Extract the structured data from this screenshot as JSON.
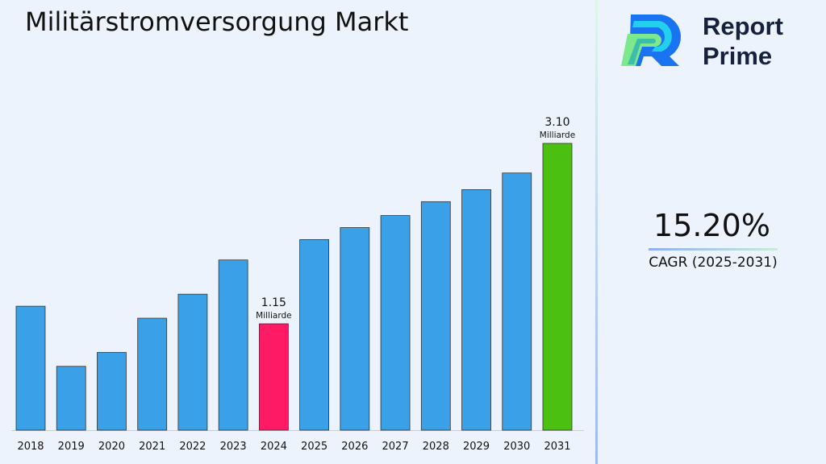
{
  "title": "Militärstromversorgung Markt",
  "brand": {
    "line1": "Report",
    "line2": "Prime"
  },
  "cagr": {
    "value": "15.20%",
    "label": "CAGR (2025-2031)"
  },
  "colors": {
    "default": "#3aa0e8",
    "highlight_2024": "#ff1a66",
    "highlight_2031": "#4cc010"
  },
  "chart_data": {
    "type": "bar",
    "title": "Militärstromversorgung Markt",
    "categories": [
      "2018",
      "2019",
      "2020",
      "2021",
      "2022",
      "2023",
      "2024",
      "2025",
      "2026",
      "2027",
      "2028",
      "2029",
      "2030",
      "2031"
    ],
    "values": [
      1.34,
      0.69,
      0.84,
      1.21,
      1.47,
      1.84,
      1.15,
      2.06,
      2.19,
      2.32,
      2.47,
      2.6,
      2.78,
      3.1
    ],
    "bar_colors": [
      "#3aa0e8",
      "#3aa0e8",
      "#3aa0e8",
      "#3aa0e8",
      "#3aa0e8",
      "#3aa0e8",
      "#ff1a66",
      "#3aa0e8",
      "#3aa0e8",
      "#3aa0e8",
      "#3aa0e8",
      "#3aa0e8",
      "#3aa0e8",
      "#4cc010"
    ],
    "data_labels": [
      {
        "category": "2024",
        "value": "1.15",
        "unit": "Milliarde"
      },
      {
        "category": "2031",
        "value": "3.10",
        "unit": "Milliarde"
      }
    ],
    "xlabel": "",
    "ylabel": "",
    "ylim": [
      0,
      3.1
    ],
    "grid": false,
    "legend": "none"
  }
}
